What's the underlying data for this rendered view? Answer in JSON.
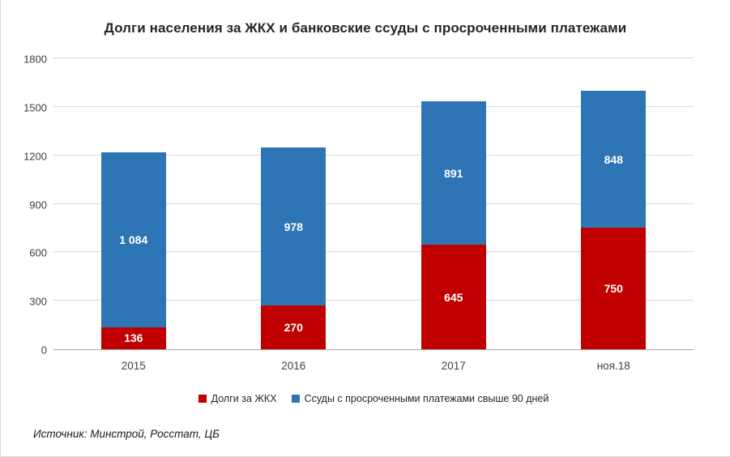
{
  "chart_data": {
    "type": "bar",
    "stacked": true,
    "title": "Долги населения за ЖКХ и банковские ссуды с просроченными платежами",
    "categories": [
      "2015",
      "2016",
      "2017",
      "ноя.18"
    ],
    "series": [
      {
        "name": "Долги за ЖКХ",
        "color": "#c00000",
        "values": [
          136,
          270,
          645,
          750
        ],
        "labels": [
          "136",
          "270",
          "645",
          "750"
        ]
      },
      {
        "name": "Ссуды с просроченными платежами свыше 90 дней",
        "color": "#2e75b6",
        "values": [
          1084,
          978,
          891,
          848
        ],
        "labels": [
          "1 084",
          "978",
          "891",
          "848"
        ]
      }
    ],
    "ylim": [
      0,
      1800
    ],
    "ytick_step": 300,
    "yticks": [
      0,
      300,
      600,
      900,
      1200,
      1500,
      1800
    ],
    "grid": true,
    "legend_position": "bottom",
    "source": "Источник: Минстрой, Росстат, ЦБ"
  }
}
